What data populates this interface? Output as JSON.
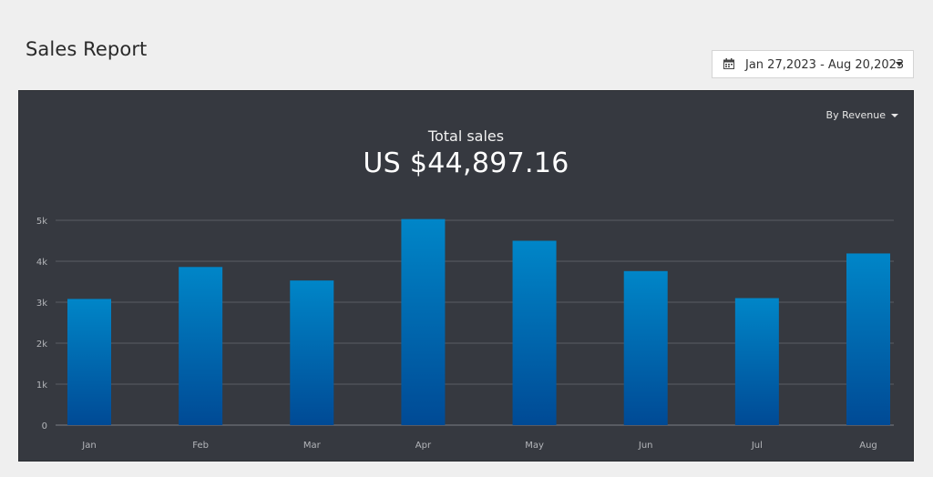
{
  "page": {
    "title": "Sales Report"
  },
  "date_range": {
    "label": "Jan 27,2023 - Aug 20,2023"
  },
  "metric_selector": {
    "label": "By Revenue"
  },
  "summary": {
    "heading": "Total sales",
    "value": "US $44,897.16"
  },
  "colors": {
    "bar_top": "#0086c8",
    "bar_bottom": "#004a95",
    "panel_bg": "#363940"
  },
  "chart_data": {
    "type": "bar",
    "categories": [
      "Jan",
      "Feb",
      "Mar",
      "Apr",
      "May",
      "Jun",
      "Jul",
      "Aug"
    ],
    "values": [
      3080,
      3860,
      3530,
      5030,
      4500,
      3760,
      3100,
      4190
    ],
    "ylim": [
      0,
      5000
    ],
    "yticks": [
      0,
      1000,
      2000,
      3000,
      4000,
      5000
    ],
    "ytick_labels": [
      "0",
      "1k",
      "2k",
      "3k",
      "4k",
      "5k"
    ],
    "grid": true,
    "title": "Total sales",
    "xlabel": "",
    "ylabel": ""
  }
}
